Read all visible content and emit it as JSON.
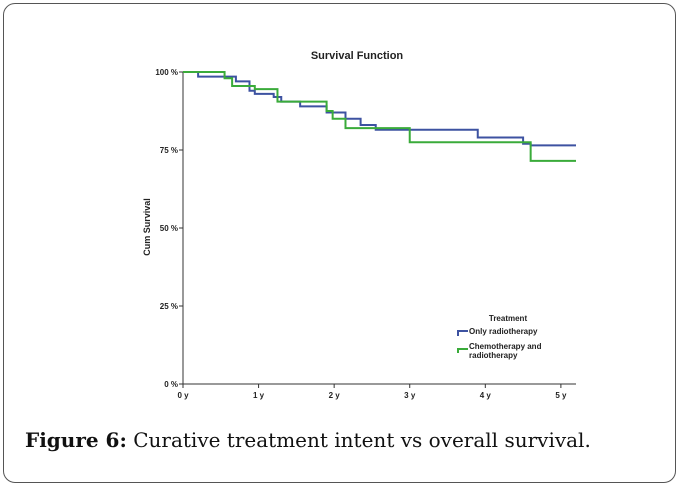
{
  "caption": {
    "label": "Figure 6:",
    "text": " Curative treatment intent vs overall survival."
  },
  "chart_data": {
    "type": "line",
    "title": "Survival Function",
    "xlabel": "",
    "ylabel": "Cum Survival",
    "x_tick_labels": [
      "0 y",
      "1 y",
      "2 y",
      "3 y",
      "4 y",
      "5 y"
    ],
    "x_ticks": [
      0,
      1,
      2,
      3,
      4,
      5
    ],
    "y_tick_labels": [
      "0 %",
      "25 %",
      "50 %",
      "75 %",
      "100 %"
    ],
    "y_ticks": [
      0,
      25,
      50,
      75,
      100
    ],
    "xlim": [
      0,
      5.2
    ],
    "ylim": [
      0,
      100
    ],
    "grid": false,
    "legend": {
      "title": "Treatment",
      "placement": "bottom-right",
      "entries": [
        "Only radiotherapy",
        "Chemotherapy and radiotherapy"
      ]
    },
    "series": [
      {
        "name": "Only radiotherapy",
        "color": "#3d52a1",
        "x": [
          0,
          0.2,
          0.7,
          0.88,
          0.95,
          1.2,
          1.3,
          1.55,
          1.9,
          2.15,
          2.35,
          2.55,
          3.9,
          4.5,
          4.6,
          5.2
        ],
        "y": [
          100,
          98.5,
          97,
          94,
          93,
          92,
          90.5,
          89,
          87,
          85,
          83,
          81.5,
          79,
          77,
          76.5,
          76.5
        ]
      },
      {
        "name": "Chemotherapy and radiotherapy",
        "color": "#3aab3a",
        "x": [
          0,
          0.55,
          0.65,
          0.95,
          1.25,
          1.9,
          1.98,
          2.15,
          3.0,
          4.6,
          5.2
        ],
        "y": [
          100,
          98,
          95.5,
          94.5,
          90.5,
          87.5,
          85,
          82,
          77.5,
          71.5,
          71.5
        ]
      }
    ]
  }
}
